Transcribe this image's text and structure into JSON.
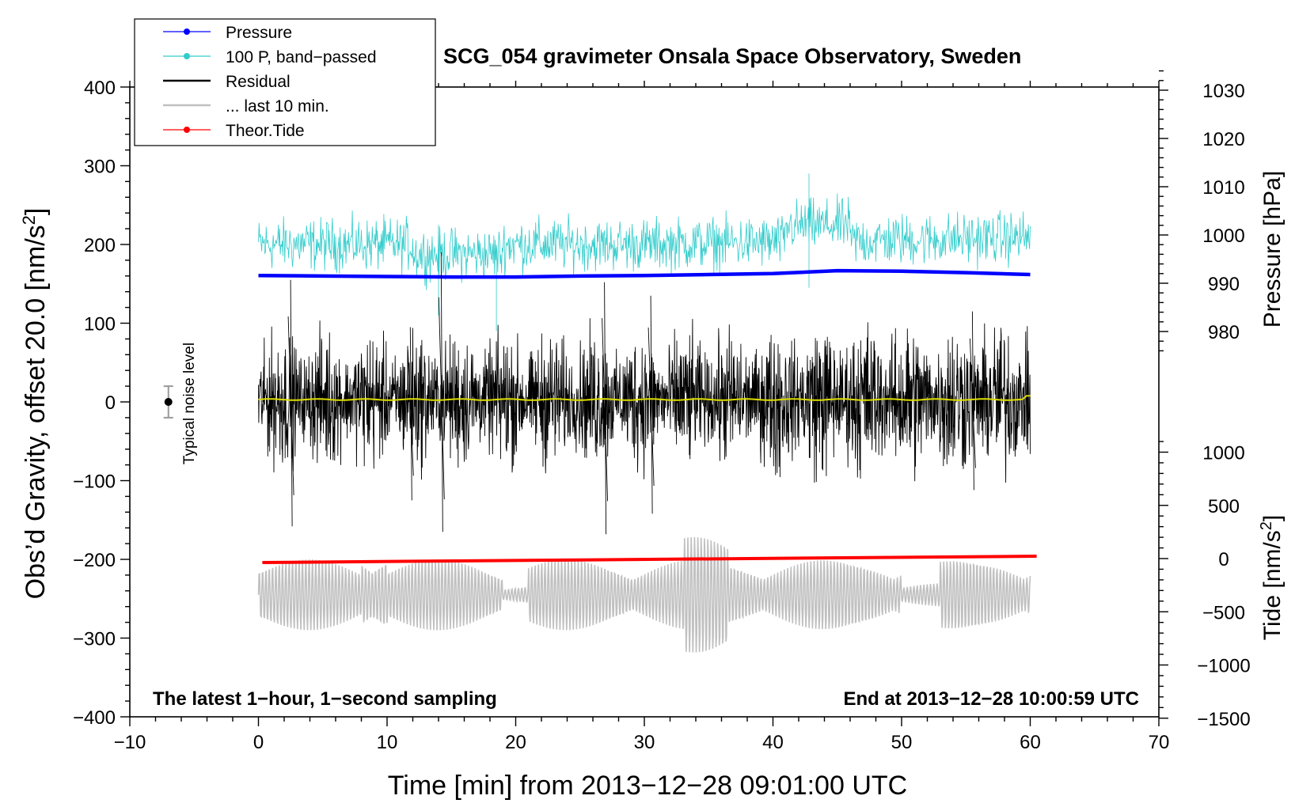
{
  "chart_data": {
    "type": "line",
    "title": "SCG_054 gravimeter Onsala Space Observatory, Sweden",
    "xlabel": "Time [min] from 2013−12−28 09:01:00 UTC",
    "ylabel": "Obs’d Gravity, offset 20.0 [nm/s",
    "ylabel_sup": "2",
    "ylabel_close": "]",
    "xlim": [
      -10,
      70
    ],
    "ylim": [
      -400,
      400
    ],
    "x_ticks": [
      -10,
      0,
      10,
      20,
      30,
      40,
      50,
      60,
      70
    ],
    "x_tick_labels": [
      "−10",
      "0",
      "10",
      "20",
      "30",
      "40",
      "50",
      "60",
      "70"
    ],
    "y_ticks": [
      -400,
      -300,
      -200,
      -100,
      0,
      100,
      200,
      300,
      400
    ],
    "y_tick_labels": [
      "−400",
      "−300",
      "−200",
      "−100",
      "0",
      "100",
      "200",
      "300",
      "400"
    ],
    "pressure_axis": {
      "label": "Pressure [hPa]",
      "ticks": [
        980,
        990,
        1000,
        1010,
        1020,
        1030
      ],
      "tick_labels": [
        "980",
        "990",
        "1000",
        "1010",
        "1020",
        "1030"
      ]
    },
    "tide_axis": {
      "label": "Tide [nm/s",
      "label_sup": "2",
      "label_close": "]",
      "ticks": [
        -1500,
        -1000,
        -500,
        0,
        500,
        1000
      ],
      "tick_labels": [
        "−1500",
        "−1000",
        "−500",
        "0",
        "500",
        "1000"
      ]
    },
    "legend": [
      {
        "label": "Pressure",
        "color": "#0000ff",
        "marker": true
      },
      {
        "label": "100 P, band−passed",
        "color": "#33cccc",
        "marker": true
      },
      {
        "label": "Residual",
        "color": "#000000",
        "marker": false
      },
      {
        "label": "... last 10 min.",
        "color": "#c0c0c0",
        "marker": false
      },
      {
        "label": "Theor.Tide",
        "color": "#ff0000",
        "marker": true
      }
    ],
    "annotation_left": "The latest 1−hour, 1−second sampling",
    "annotation_right": "End at 2013−12−28 10:00:59 UTC",
    "noise_label": "Typical noise level",
    "noise_bar": {
      "x": -7,
      "center": 0,
      "half_range": 20
    },
    "series": [
      {
        "name": "Pressure",
        "color": "#0000ff",
        "unit": "hPa",
        "x": [
          0,
          5,
          10,
          15,
          20,
          25,
          30,
          35,
          40,
          45,
          50,
          55,
          60
        ],
        "values": [
          991.6,
          991.5,
          991.4,
          991.3,
          991.3,
          991.5,
          991.6,
          991.8,
          992.0,
          992.6,
          992.5,
          992.2,
          991.8
        ]
      },
      {
        "name": "100 P, band−passed",
        "color": "#33cccc",
        "unit": "nm/s2",
        "center": 200,
        "amplitude": 28,
        "bursts": [
          {
            "t": 42.8,
            "v": 290
          },
          {
            "t": 18.5,
            "v": 90
          },
          {
            "t": 42.8,
            "v": 145
          },
          {
            "t": 14.0,
            "v": 110
          }
        ]
      },
      {
        "name": "Residual",
        "color": "#000000",
        "unit": "nm/s2",
        "center": 3,
        "amplitude": 40,
        "spikes": [
          {
            "t": 2.5,
            "max": 155,
            "min": -158
          },
          {
            "t": 14.2,
            "max": 190,
            "min": -165
          },
          {
            "t": 26.9,
            "max": 152,
            "min": -168
          },
          {
            "t": 30.5,
            "max": 135,
            "min": -142
          },
          {
            "t": 11.8,
            "max": 95,
            "min": -125
          },
          {
            "t": 55.5,
            "max": 115,
            "min": -112
          }
        ]
      },
      {
        "name": "Residual mean",
        "color": "#dddd00",
        "unit": "nm/s2",
        "center": 3
      },
      {
        "name": "... last 10 min.",
        "color": "#c0c0c0",
        "unit": "nm/s2",
        "center": -245,
        "amplitude": 45
      },
      {
        "name": "Theor.Tide",
        "color": "#ff0000",
        "unit": "nm/s2",
        "x": [
          0.3,
          60.5
        ],
        "values": [
          -204,
          -196
        ]
      }
    ]
  }
}
